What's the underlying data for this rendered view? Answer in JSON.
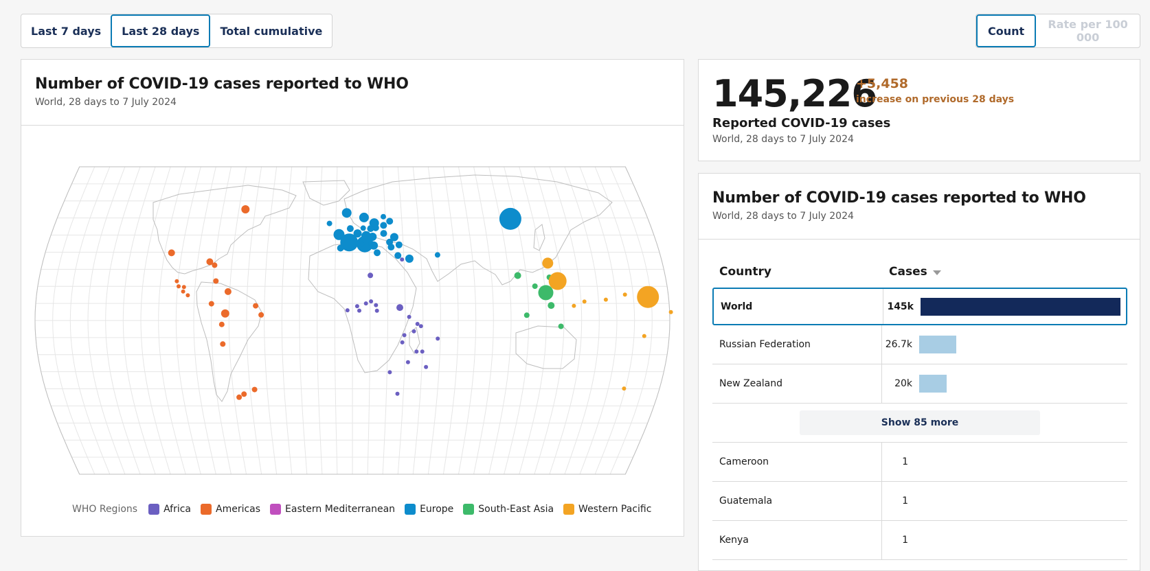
{
  "period_tabs": [
    {
      "label": "Last 7 days",
      "active": false
    },
    {
      "label": "Last 28 days",
      "active": true
    },
    {
      "label": "Total cumulative",
      "active": false
    }
  ],
  "metric_tabs": [
    {
      "label": "Count",
      "active": true
    },
    {
      "label": "Rate per 100 000",
      "active": false,
      "disabled": true
    }
  ],
  "map_card": {
    "title": "Number of COVID-19 cases reported to WHO",
    "subtitle": "World, 28 days to 7 July 2024"
  },
  "legend": {
    "title": "WHO Regions",
    "items": [
      {
        "label": "Africa",
        "color": "#6b5fc1"
      },
      {
        "label": "Americas",
        "color": "#eb6a2a"
      },
      {
        "label": "Eastern Mediterranean",
        "color": "#c04fbe"
      },
      {
        "label": "Europe",
        "color": "#0d8ccc"
      },
      {
        "label": "South-East Asia",
        "color": "#3dba6a"
      },
      {
        "label": "Western Pacific",
        "color": "#f3a423"
      }
    ]
  },
  "kpi": {
    "value": "145,226",
    "delta": "+5,458",
    "delta_text": "increase on previous 28 days",
    "label": "Reported COVID-19 cases",
    "subtitle": "World, 28 days to 7 July 2024"
  },
  "table_card": {
    "title": "Number of COVID-19 cases reported to WHO",
    "subtitle": "World, 28 days to 7 July 2024",
    "col_country": "Country",
    "col_cases": "Cases",
    "top_rows": [
      {
        "country": "World",
        "label": "145k",
        "value": 145226
      },
      {
        "country": "Russian Federation",
        "label": "26.7k",
        "value": 26700
      },
      {
        "country": "New Zealand",
        "label": "20k",
        "value": 20000
      }
    ],
    "show_more": "Show 85 more",
    "bottom_rows": [
      {
        "country": "Cameroon",
        "label": "1"
      },
      {
        "country": "Guatemala",
        "label": "1"
      },
      {
        "country": "Kenya",
        "label": "1"
      }
    ]
  },
  "bubbles": {
    "africa": [
      [
        28.9,
        35.7
      ],
      [
        10.3,
        26.4
      ],
      [
        26.9,
        7.6
      ],
      [
        2.7,
        8.4
      ],
      [
        7.7,
        10.0
      ],
      [
        10.6,
        11.2
      ],
      [
        13.4,
        9.0
      ],
      [
        13.9,
        5.7
      ],
      [
        3.9,
        5.8
      ],
      [
        -2.8,
        6.0
      ],
      [
        32.2,
        2.1
      ],
      [
        36.9,
        -2.0
      ],
      [
        38.9,
        -3.3
      ],
      [
        34.9,
        -6.3
      ],
      [
        29.5,
        -8.6
      ],
      [
        48.5,
        -10.6
      ],
      [
        28.4,
        -12.8
      ],
      [
        39.9,
        -18.2
      ],
      [
        36.6,
        -18.2
      ],
      [
        31.9,
        -24.4
      ],
      [
        42.4,
        -27.2
      ],
      [
        21.6,
        -30.3
      ],
      [
        26.5,
        -42.9
      ]
    ],
    "americas": [
      [
        -66.0,
        65.1
      ],
      [
        -106.0,
        39.6
      ],
      [
        -82.9,
        34.4
      ],
      [
        -79.9,
        32.4
      ],
      [
        -78.3,
        23.1
      ],
      [
        -100.7,
        23.0
      ],
      [
        -99.4,
        20.0
      ],
      [
        -96.3,
        19.6
      ],
      [
        -96.6,
        17.0
      ],
      [
        -71.0,
        16.9
      ],
      [
        -93.8,
        14.8
      ],
      [
        -80.1,
        9.8
      ],
      [
        -55.0,
        8.6
      ],
      [
        -72.2,
        4.1
      ],
      [
        -51.8,
        3.3
      ],
      [
        -74.1,
        -2.3
      ],
      [
        -73.8,
        -13.8
      ],
      [
        -67.0,
        -44.9
      ],
      [
        -63.9,
        -43.1
      ],
      [
        -57.4,
        -40.4
      ]
    ],
    "europe": [
      [
        -13.9,
        56.8
      ],
      [
        14.0,
        54.3
      ],
      [
        -3.5,
        63.0
      ],
      [
        7.1,
        60.3
      ],
      [
        13.2,
        57.0
      ],
      [
        -8.0,
        50.3
      ],
      [
        -1.9,
        45.7
      ],
      [
        3.1,
        51.0
      ],
      [
        8.2,
        49.5
      ],
      [
        12.0,
        49.0
      ],
      [
        18.7,
        51.0
      ],
      [
        7.3,
        44.7
      ],
      [
        12.6,
        43.9
      ],
      [
        14.5,
        39.7
      ],
      [
        22.0,
        45.9
      ],
      [
        22.8,
        43.0
      ],
      [
        22.6,
        58.1
      ],
      [
        18.8,
        55.7
      ],
      [
        24.9,
        48.8
      ],
      [
        27.5,
        44.3
      ],
      [
        33.2,
        36.2
      ],
      [
        49.8,
        38.4
      ],
      [
        96.2,
        59.5
      ],
      [
        -7.0,
        42.4
      ],
      [
        26.6,
        38.0
      ],
      [
        18.9,
        60.8
      ],
      [
        -1.3,
        53.8
      ],
      [
        10.9,
        53.8
      ],
      [
        7.1,
        48.7
      ],
      [
        5.4,
        44.7
      ],
      [
        11.1,
        45.2
      ],
      [
        6.5,
        54.1
      ]
    ],
    "sea": [
      [
        95.1,
        26.3
      ],
      [
        113.2,
        25.3
      ],
      [
        104.4,
        20.1
      ],
      [
        110.3,
        16.3
      ],
      [
        112.9,
        8.8
      ],
      [
        98.9,
        3.1
      ],
      [
        118.3,
        -3.4
      ]
    ],
    "wpac": [
      [
        113.4,
        33.6
      ],
      [
        117.7,
        23.1
      ],
      [
        131.9,
        11.1
      ],
      [
        125.8,
        8.6
      ],
      [
        144.2,
        12.2
      ],
      [
        155.3,
        15.2
      ],
      [
        168.3,
        13.8
      ],
      [
        180.7,
        4.9
      ],
      [
        208.9,
        -13.3
      ],
      [
        210.6,
        -15.6
      ],
      [
        159.2,
        -39.8
      ],
      [
        165.8,
        -9.1
      ]
    ]
  }
}
